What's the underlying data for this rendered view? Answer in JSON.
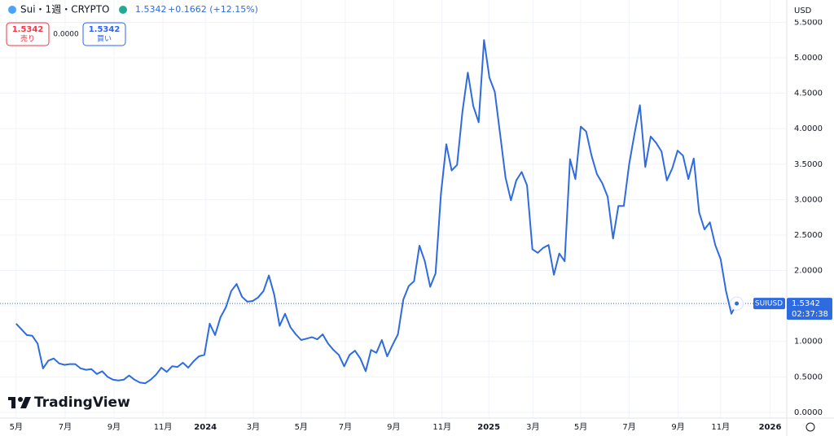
{
  "chart_data": {
    "type": "line",
    "title": "Sui・1週・CRYPTO",
    "header": {
      "price": "1.5342",
      "change": "+0.1662 (+12.15%)",
      "sell_price": "1.5342",
      "sell_label": "売り",
      "spread": "0.0000",
      "buy_price": "1.5342",
      "buy_label": "買い",
      "currency": "USD",
      "symbol": "SUIUSD",
      "last_price": "1.5342",
      "countdown": "02:37:38",
      "brand": "TradingView"
    },
    "series": [
      {
        "name": "SUIUSD",
        "color": "#2f6be0",
        "values": [
          1.25,
          1.17,
          1.09,
          1.08,
          0.97,
          0.62,
          0.73,
          0.76,
          0.69,
          0.67,
          0.68,
          0.68,
          0.62,
          0.6,
          0.61,
          0.54,
          0.58,
          0.5,
          0.46,
          0.45,
          0.46,
          0.52,
          0.46,
          0.42,
          0.41,
          0.46,
          0.53,
          0.63,
          0.57,
          0.65,
          0.64,
          0.7,
          0.63,
          0.72,
          0.79,
          0.81,
          1.25,
          1.09,
          1.34,
          1.48,
          1.71,
          1.81,
          1.63,
          1.56,
          1.57,
          1.62,
          1.71,
          1.93,
          1.66,
          1.22,
          1.39,
          1.2,
          1.1,
          1.02,
          1.04,
          1.06,
          1.03,
          1.1,
          0.97,
          0.88,
          0.81,
          0.65,
          0.81,
          0.87,
          0.76,
          0.58,
          0.88,
          0.84,
          1.02,
          0.79,
          0.95,
          1.1,
          1.59,
          1.78,
          1.85,
          2.35,
          2.13,
          1.77,
          1.96,
          3.08,
          3.78,
          3.41,
          3.49,
          4.24,
          4.79,
          4.32,
          4.09,
          5.25,
          4.72,
          4.52,
          3.92,
          3.31,
          2.99,
          3.27,
          3.39,
          3.2,
          2.3,
          2.25,
          2.32,
          2.36,
          1.94,
          2.24,
          2.13,
          3.57,
          3.29,
          4.03,
          3.96,
          3.62,
          3.36,
          3.23,
          3.04,
          2.45,
          2.91,
          2.91,
          3.5,
          3.93,
          4.33,
          3.46,
          3.89,
          3.8,
          3.68,
          3.27,
          3.44,
          3.69,
          3.62,
          3.29,
          3.58,
          2.82,
          2.58,
          2.68,
          2.36,
          2.16,
          1.71,
          1.39,
          1.5342
        ]
      }
    ],
    "xlim": [
      -3.0,
      143.3
    ],
    "xticks": [
      {
        "value": 0,
        "label": "5月"
      },
      {
        "value": 9.1,
        "label": "7月"
      },
      {
        "value": 18.2,
        "label": "9月"
      },
      {
        "value": 27.3,
        "label": "11月"
      },
      {
        "value": 35.2,
        "label": "2024"
      },
      {
        "value": 44.1,
        "label": "3月"
      },
      {
        "value": 53.0,
        "label": "5月"
      },
      {
        "value": 61.2,
        "label": "7月"
      },
      {
        "value": 70.2,
        "label": "9月"
      },
      {
        "value": 79.2,
        "label": "11月"
      },
      {
        "value": 87.9,
        "label": "2025"
      },
      {
        "value": 96.1,
        "label": "3月"
      },
      {
        "value": 105.0,
        "label": "5月"
      },
      {
        "value": 114.0,
        "label": "7月"
      },
      {
        "value": 123.1,
        "label": "9月"
      },
      {
        "value": 131.0,
        "label": "11月"
      },
      {
        "value": 140.2,
        "label": "2026"
      }
    ],
    "ylim": [
      -0.15,
      5.585
    ],
    "yticks": [
      {
        "value": 0,
        "label": "0.0000"
      },
      {
        "value": 0.5,
        "label": "0.5000"
      },
      {
        "value": 1,
        "label": "1.0000"
      },
      {
        "value": 1.5,
        "label": "1.5000"
      },
      {
        "value": 2,
        "label": "2.0000"
      },
      {
        "value": 2.5,
        "label": "2.5000"
      },
      {
        "value": 3,
        "label": "3.0000"
      },
      {
        "value": 3.5,
        "label": "3.5000"
      },
      {
        "value": 4,
        "label": "4.0000"
      },
      {
        "value": 4.5,
        "label": "4.5000"
      },
      {
        "value": 5,
        "label": "5.0000"
      },
      {
        "value": 5.5,
        "label": "5.5000"
      }
    ],
    "grid": true
  }
}
